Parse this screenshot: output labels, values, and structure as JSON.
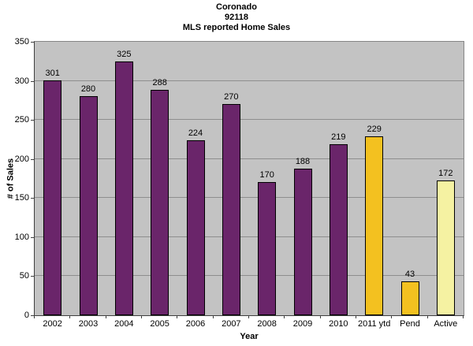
{
  "chart_data": {
    "type": "bar",
    "title": "Coronado 92118 MLS reported Home Sales",
    "title_lines": [
      "Coronado",
      "92118",
      "MLS reported Home Sales"
    ],
    "xlabel": "Year",
    "ylabel": "# of Sales",
    "categories": [
      "2002",
      "2003",
      "2004",
      "2005",
      "2006",
      "2007",
      "2008",
      "2009",
      "2010",
      "2011 ytd",
      "Pend",
      "Active"
    ],
    "values": [
      301,
      280,
      325,
      288,
      224,
      270,
      170,
      188,
      219,
      229,
      43,
      172
    ],
    "bar_colors": [
      "#6a256a",
      "#6a256a",
      "#6a256a",
      "#6a256a",
      "#6a256a",
      "#6a256a",
      "#6a256a",
      "#6a256a",
      "#6a256a",
      "#f3c120",
      "#f3c120",
      "#f5f2a2"
    ],
    "ylim": [
      0,
      350
    ],
    "yticks": [
      0,
      50,
      100,
      150,
      200,
      250,
      300,
      350
    ],
    "grid": true,
    "legend": false,
    "data_labels": true,
    "plot_background": "#c3c3c3",
    "gridline_color": "#8e8e8e",
    "bar_border_color": "#000000",
    "axis_color": "#3f3f3f"
  }
}
